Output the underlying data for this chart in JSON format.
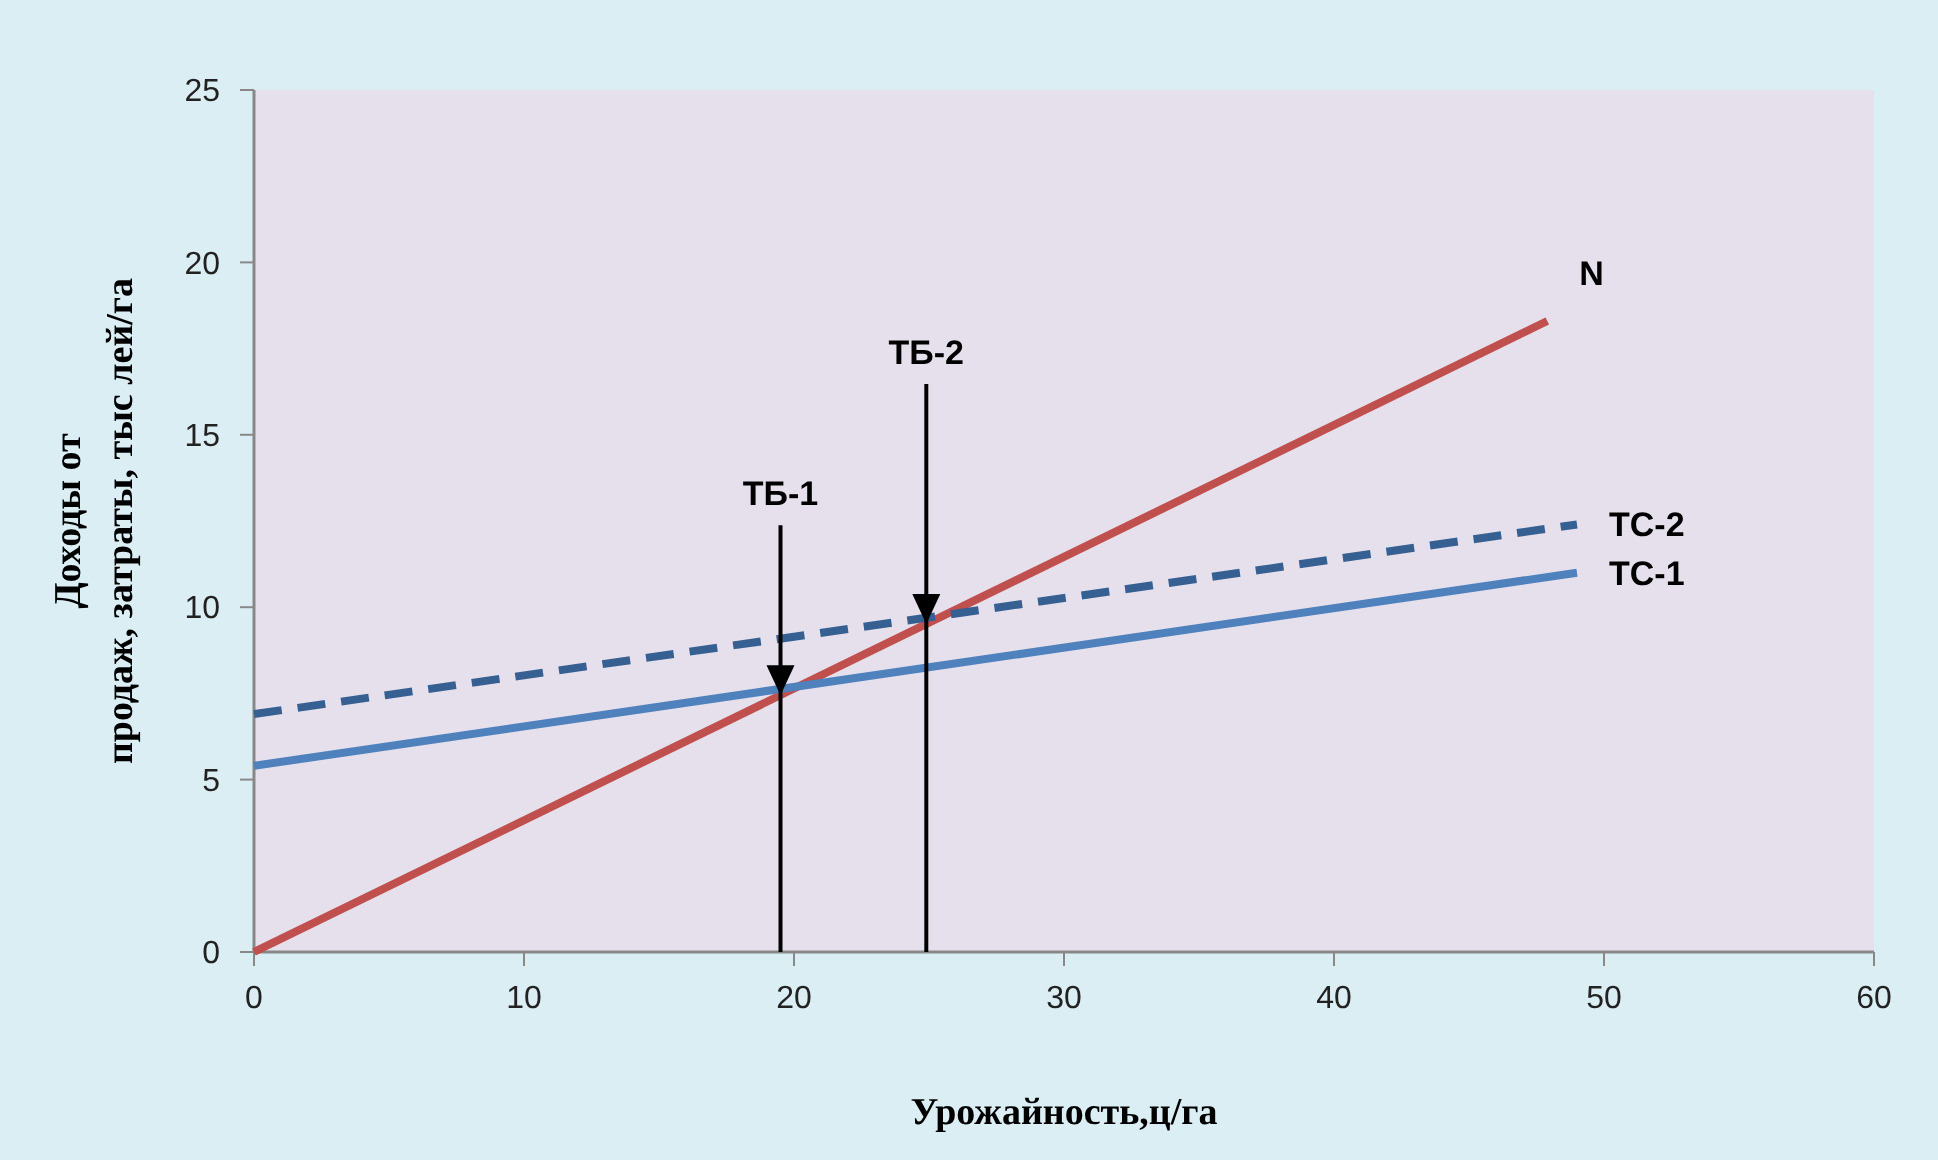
{
  "chart_data": {
    "type": "line",
    "xlabel": "Урожайность,ц/га",
    "ylabel": "Доходы от\nпродаж, затраты,  тыс лей/га",
    "xlim": [
      0,
      60
    ],
    "xticks": [
      0,
      10,
      20,
      30,
      40,
      50,
      60
    ],
    "ylim": [
      0,
      25
    ],
    "yticks": [
      0,
      5,
      10,
      15,
      20,
      25
    ],
    "grid": false,
    "legend": false,
    "marker": "none",
    "series": [
      {
        "name": "N",
        "color": "#c0504d",
        "x": [
          0,
          47.9
        ],
        "values": [
          0,
          18.3
        ]
      },
      {
        "name": "ТС-2",
        "color": "#376092",
        "line_style": "dashed",
        "x": [
          0,
          49
        ],
        "values": [
          6.9,
          12.4
        ]
      },
      {
        "name": "ТС-1",
        "color": "#4f81bd",
        "x": [
          0,
          49
        ],
        "values": [
          5.4,
          11.0
        ]
      }
    ],
    "ref_lines": [
      {
        "axis": "x",
        "value": 19.5,
        "label": "ТБ-1",
        "color": "#000000"
      },
      {
        "axis": "x",
        "value": 24.9,
        "label": "ТБ-2",
        "color": "#000000"
      }
    ]
  }
}
